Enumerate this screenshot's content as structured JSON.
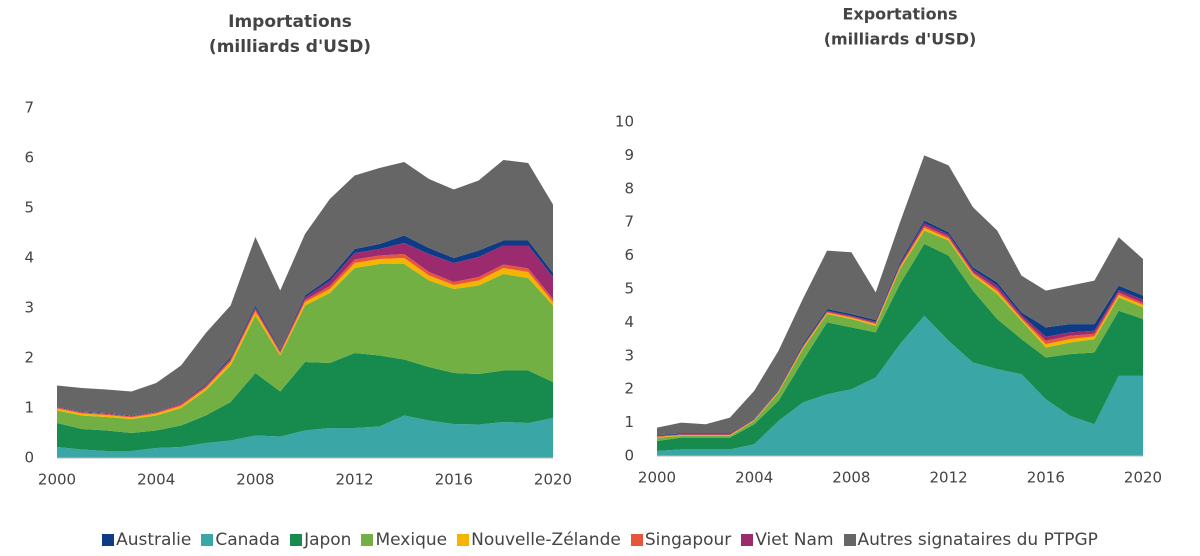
{
  "chart_data": [
    {
      "type": "area",
      "title": "Importations",
      "subtitle": "(milliards d'USD)",
      "x": [
        2000,
        2001,
        2002,
        2003,
        2004,
        2005,
        2006,
        2007,
        2008,
        2009,
        2010,
        2011,
        2012,
        2013,
        2014,
        2015,
        2016,
        2017,
        2018,
        2019,
        2020
      ],
      "xlim": [
        2000,
        2020
      ],
      "xticks": [
        2000,
        2004,
        2008,
        2012,
        2016,
        2020
      ],
      "ylim": [
        0,
        7
      ],
      "yticks": [
        0,
        1,
        2,
        3,
        4,
        5,
        6,
        7
      ],
      "series": [
        {
          "name": "Australie",
          "color": "#0d3b86",
          "values": [
            0.01,
            0.01,
            0.01,
            0.01,
            0.01,
            0.01,
            0.02,
            0.03,
            0.04,
            0.02,
            0.04,
            0.06,
            0.08,
            0.1,
            0.15,
            0.12,
            0.1,
            0.13,
            0.1,
            0.1,
            0.08
          ]
        },
        {
          "name": "Canada",
          "color": "#3aa6a6",
          "values": [
            0.22,
            0.17,
            0.14,
            0.14,
            0.2,
            0.22,
            0.3,
            0.35,
            0.45,
            0.43,
            0.55,
            0.6,
            0.6,
            0.63,
            0.85,
            0.75,
            0.68,
            0.67,
            0.72,
            0.7,
            0.8
          ]
        },
        {
          "name": "Japon",
          "color": "#178a4d",
          "values": [
            0.48,
            0.41,
            0.41,
            0.36,
            0.35,
            0.43,
            0.55,
            0.77,
            1.25,
            0.9,
            1.37,
            1.3,
            1.5,
            1.42,
            1.12,
            1.07,
            1.02,
            1.01,
            1.03,
            1.05,
            0.72
          ]
        },
        {
          "name": "Mexique",
          "color": "#72b043",
          "values": [
            0.25,
            0.27,
            0.27,
            0.28,
            0.3,
            0.35,
            0.5,
            0.73,
            1.15,
            0.72,
            1.13,
            1.4,
            1.7,
            1.83,
            1.91,
            1.73,
            1.68,
            1.77,
            1.93,
            1.85,
            1.53
          ]
        },
        {
          "name": "Nouvelle-Zélande",
          "color": "#f5b400",
          "values": [
            0.04,
            0.04,
            0.04,
            0.03,
            0.04,
            0.04,
            0.05,
            0.07,
            0.08,
            0.04,
            0.07,
            0.08,
            0.1,
            0.1,
            0.12,
            0.1,
            0.08,
            0.1,
            0.12,
            0.12,
            0.07
          ]
        },
        {
          "name": "Singapour",
          "color": "#e8553d",
          "values": [
            0.02,
            0.02,
            0.02,
            0.02,
            0.02,
            0.03,
            0.03,
            0.04,
            0.04,
            0.03,
            0.04,
            0.06,
            0.07,
            0.07,
            0.08,
            0.07,
            0.06,
            0.07,
            0.07,
            0.07,
            0.06
          ]
        },
        {
          "name": "Viet Nam",
          "color": "#9c2a6e",
          "values": [
            0.01,
            0.01,
            0.01,
            0.01,
            0.01,
            0.02,
            0.02,
            0.03,
            0.04,
            0.03,
            0.05,
            0.1,
            0.13,
            0.13,
            0.22,
            0.36,
            0.38,
            0.4,
            0.38,
            0.46,
            0.44
          ]
        },
        {
          "name": "Autres signataires du PTPGP",
          "color": "#666666",
          "values": [
            0.42,
            0.47,
            0.47,
            0.48,
            0.57,
            0.75,
            1.03,
            1.03,
            1.37,
            1.18,
            1.23,
            1.58,
            1.47,
            1.52,
            1.47,
            1.38,
            1.37,
            1.4,
            1.61,
            1.55,
            1.37
          ]
        }
      ]
    },
    {
      "type": "area",
      "title": "Exportations",
      "subtitle": "(milliards d'USD)",
      "x": [
        2000,
        2001,
        2002,
        2003,
        2004,
        2005,
        2006,
        2007,
        2008,
        2009,
        2010,
        2011,
        2012,
        2013,
        2014,
        2015,
        2016,
        2017,
        2018,
        2019,
        2020
      ],
      "xlim": [
        2000,
        2020
      ],
      "xticks": [
        2000,
        2004,
        2008,
        2012,
        2016,
        2020
      ],
      "ylim": [
        0,
        10
      ],
      "yticks": [
        0,
        1,
        2,
        3,
        4,
        5,
        6,
        7,
        8,
        9,
        10
      ],
      "series": [
        {
          "name": "Australie",
          "color": "#0d3b86",
          "values": [
            0.02,
            0.02,
            0.02,
            0.02,
            0.02,
            0.03,
            0.05,
            0.05,
            0.05,
            0.05,
            0.06,
            0.08,
            0.07,
            0.07,
            0.1,
            0.08,
            0.28,
            0.25,
            0.2,
            0.13,
            0.12
          ]
        },
        {
          "name": "Canada",
          "color": "#3aa6a6",
          "values": [
            0.15,
            0.2,
            0.2,
            0.2,
            0.35,
            1.05,
            1.6,
            1.85,
            2.0,
            2.35,
            3.35,
            4.2,
            3.45,
            2.8,
            2.6,
            2.45,
            1.7,
            1.2,
            0.95,
            2.4,
            2.4
          ]
        },
        {
          "name": "Japon",
          "color": "#178a4d",
          "values": [
            0.3,
            0.35,
            0.35,
            0.35,
            0.6,
            0.6,
            1.25,
            2.15,
            1.85,
            1.35,
            1.8,
            2.15,
            2.55,
            2.15,
            1.5,
            1.05,
            1.25,
            1.85,
            2.15,
            1.95,
            1.7
          ]
        },
        {
          "name": "Mexique",
          "color": "#72b043",
          "values": [
            0.1,
            0.05,
            0.05,
            0.05,
            0.1,
            0.25,
            0.35,
            0.25,
            0.25,
            0.2,
            0.45,
            0.4,
            0.45,
            0.45,
            0.75,
            0.55,
            0.3,
            0.35,
            0.4,
            0.4,
            0.35
          ]
        },
        {
          "name": "Nouvelle-Zélande",
          "color": "#f5b400",
          "values": [
            0.02,
            0.02,
            0.02,
            0.02,
            0.02,
            0.03,
            0.04,
            0.04,
            0.04,
            0.05,
            0.05,
            0.08,
            0.06,
            0.06,
            0.08,
            0.05,
            0.1,
            0.1,
            0.08,
            0.07,
            0.07
          ]
        },
        {
          "name": "Singapour",
          "color": "#e8553d",
          "values": [
            0.02,
            0.02,
            0.02,
            0.02,
            0.02,
            0.02,
            0.03,
            0.03,
            0.03,
            0.03,
            0.04,
            0.06,
            0.05,
            0.05,
            0.07,
            0.05,
            0.1,
            0.1,
            0.08,
            0.07,
            0.06
          ]
        },
        {
          "name": "Viet Nam",
          "color": "#9c2a6e",
          "values": [
            0.01,
            0.02,
            0.02,
            0.02,
            0.01,
            0.02,
            0.03,
            0.03,
            0.03,
            0.04,
            0.05,
            0.08,
            0.07,
            0.07,
            0.1,
            0.07,
            0.12,
            0.1,
            0.09,
            0.08,
            0.1
          ]
        },
        {
          "name": "Autres signataires du PTPGP",
          "color": "#666666",
          "values": [
            0.23,
            0.32,
            0.27,
            0.47,
            0.83,
            1.15,
            1.35,
            1.75,
            1.85,
            0.83,
            1.2,
            1.95,
            2.0,
            1.8,
            1.55,
            1.1,
            1.1,
            1.15,
            1.3,
            1.45,
            1.1
          ]
        }
      ]
    }
  ]
}
